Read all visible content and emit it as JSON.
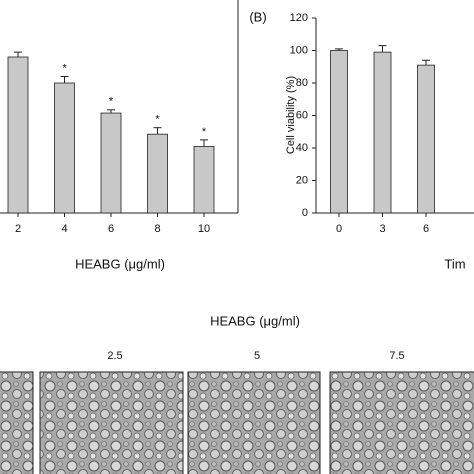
{
  "chart_data": [
    {
      "type": "bar",
      "x_label": "HEABG (μg/ml)",
      "categories": [
        "2",
        "4",
        "6",
        "8",
        "10"
      ],
      "values": [
        96,
        80,
        61.5,
        48.5,
        41
      ],
      "errors": [
        3,
        4,
        2,
        4,
        4
      ],
      "annotations": [
        null,
        "*",
        "*",
        "*",
        "*"
      ],
      "color": "#c8c8c8",
      "ylim": [
        0,
        120
      ]
    },
    {
      "type": "bar",
      "panel_label": "(B)",
      "x_label": "Tim",
      "y_label": "Cell viability (%)",
      "categories": [
        "0",
        "3",
        "6"
      ],
      "values": [
        100,
        99,
        91
      ],
      "errors": [
        1,
        4,
        3
      ],
      "color": "#c8c8c8",
      "ylim": [
        0,
        120
      ],
      "yticks": [
        0,
        20,
        40,
        60,
        80,
        100,
        120
      ]
    }
  ],
  "panel_c": {
    "title": "HEABG (μg/ml)",
    "labels": [
      "2.5",
      "5",
      "7.5"
    ]
  }
}
